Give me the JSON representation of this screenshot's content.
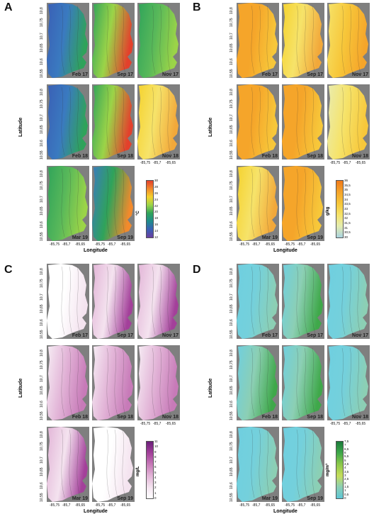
{
  "panels": [
    {
      "letter": "A",
      "colors": {
        "base": "#3a5fb5",
        "mid": "#2fa35a",
        "hot": "#e3402c"
      },
      "tiles": [
        {
          "label": "Feb 17",
          "scheme": "cold"
        },
        {
          "label": "Sep 17",
          "scheme": "warm"
        },
        {
          "label": "Nov 17",
          "scheme": "green"
        },
        {
          "label": "Feb 18",
          "scheme": "cold"
        },
        {
          "label": "Sep 18",
          "scheme": "warm"
        },
        {
          "label": "Nov 18",
          "scheme": "yellow"
        },
        {
          "label": "Mar 19",
          "scheme": "green"
        },
        {
          "label": "Sep 19",
          "scheme": "greenwarm"
        }
      ],
      "legend": {
        "unit": "°C",
        "ticks": [
          "30",
          "28",
          "26",
          "24",
          "22",
          "20",
          "18",
          "16",
          "14",
          "12"
        ],
        "gradient": [
          "#e3402c",
          "#f28a2c",
          "#f5d22d",
          "#9bd448",
          "#2fa35a",
          "#1f8c8c",
          "#3a5fb5",
          "#6a3fa0"
        ]
      }
    },
    {
      "letter": "B",
      "tiles": [
        {
          "label": "Feb 17",
          "scheme": "orange"
        },
        {
          "label": "Sep 17",
          "scheme": "yellow"
        },
        {
          "label": "Nov 17",
          "scheme": "yelloworange"
        },
        {
          "label": "Feb 18",
          "scheme": "orange"
        },
        {
          "label": "Sep 18",
          "scheme": "orange"
        },
        {
          "label": "Nov 18",
          "scheme": "paleyellow"
        },
        {
          "label": "Mar 19",
          "scheme": "yellow"
        },
        {
          "label": "Sep 19",
          "scheme": "orange"
        }
      ],
      "legend": {
        "unit": "g/kg",
        "ticks": [
          "36",
          "35,5",
          "35",
          "34,5",
          "34",
          "33,5",
          "33",
          "32,5",
          "32",
          "31,5",
          "31",
          "30,5",
          "30"
        ],
        "gradient": [
          "#f07a1a",
          "#f5a52a",
          "#f7c73a",
          "#f6e36a",
          "#e4ecb0",
          "#a9d3e0"
        ]
      }
    },
    {
      "letter": "C",
      "tiles": [
        {
          "label": "Feb 17",
          "scheme": "white"
        },
        {
          "label": "Sep 17",
          "scheme": "pink"
        },
        {
          "label": "Nov 17",
          "scheme": "pink"
        },
        {
          "label": "Feb 18",
          "scheme": "palepink"
        },
        {
          "label": "Sep 18",
          "scheme": "palepink"
        },
        {
          "label": "Nov 18",
          "scheme": "palepink"
        },
        {
          "label": "Mar 19",
          "scheme": "pink"
        },
        {
          "label": "Sep 19",
          "scheme": "white"
        }
      ],
      "legend": {
        "unit": "mg/L",
        "ticks": [
          "11",
          "10",
          "9",
          "8",
          "7",
          "6",
          "5",
          "4",
          "3",
          "2",
          "1",
          "0"
        ],
        "gradient": [
          "#6b1f7a",
          "#a3409a",
          "#c77ab8",
          "#e2b4d7",
          "#f4e3ef",
          "#ffffff"
        ]
      }
    },
    {
      "letter": "D",
      "tiles": [
        {
          "label": "Feb 17",
          "scheme": "cyan"
        },
        {
          "label": "Sep 17",
          "scheme": "cyangreen"
        },
        {
          "label": "Nov 17",
          "scheme": "cyan"
        },
        {
          "label": "Feb 18",
          "scheme": "cyangreen"
        },
        {
          "label": "Sep 18",
          "scheme": "cyangreen"
        },
        {
          "label": "Nov 18",
          "scheme": "cyan"
        },
        {
          "label": "Mar 19",
          "scheme": "cyan"
        },
        {
          "label": "Sep 19",
          "scheme": "cyan"
        }
      ],
      "legend": {
        "unit": "mg/m³",
        "ticks": [
          "7,5",
          "7",
          "6,5",
          "6",
          "5,5",
          "5",
          "4,5",
          "4",
          "3,5",
          "3",
          "2,5",
          "2",
          "1,5",
          "1",
          "0,5",
          "0"
        ],
        "gradient": [
          "#1a7a3a",
          "#3fa84a",
          "#8cc84a",
          "#c6dd5a",
          "#8ccfb4",
          "#5ec6d6"
        ]
      }
    }
  ],
  "axes": {
    "ylabel": "Latitude",
    "xlabel": "Longitude",
    "yticks": [
      "10,8",
      "10,75",
      "10,7",
      "10,65",
      "10,6",
      "10,55"
    ],
    "xticks": [
      "-85,75",
      "-85,7",
      "-85,65"
    ]
  },
  "schemes": {
    "cold": [
      "#3a5fb5",
      "#3a7ac0",
      "#2fa35a"
    ],
    "warm": [
      "#2fa35a",
      "#9bd448",
      "#e3402c"
    ],
    "green": [
      "#2fa35a",
      "#58b85a",
      "#9bd448"
    ],
    "yellow": [
      "#f5d22d",
      "#f6e36a",
      "#f2a83a"
    ],
    "greenwarm": [
      "#3a7ac0",
      "#2fa35a",
      "#f28a2c"
    ],
    "orange": [
      "#f5a52a",
      "#f5a52a",
      "#f7c73a"
    ],
    "yelloworange": [
      "#f6e36a",
      "#f7c73a",
      "#f5a52a"
    ],
    "paleyellow": [
      "#e9ecb0",
      "#f6e36a",
      "#f7c73a"
    ],
    "white": [
      "#ffffff",
      "#ffffff",
      "#f4e3ef"
    ],
    "pink": [
      "#e2b4d7",
      "#f4e3ef",
      "#a3409a"
    ],
    "palepink": [
      "#f7eef5",
      "#e2b4d7",
      "#c77ab8"
    ],
    "cyan": [
      "#6fcfe0",
      "#74d0dc",
      "#8ccfb4"
    ],
    "cyangreen": [
      "#6fcfe0",
      "#8ccfb4",
      "#3fa84a"
    ]
  }
}
